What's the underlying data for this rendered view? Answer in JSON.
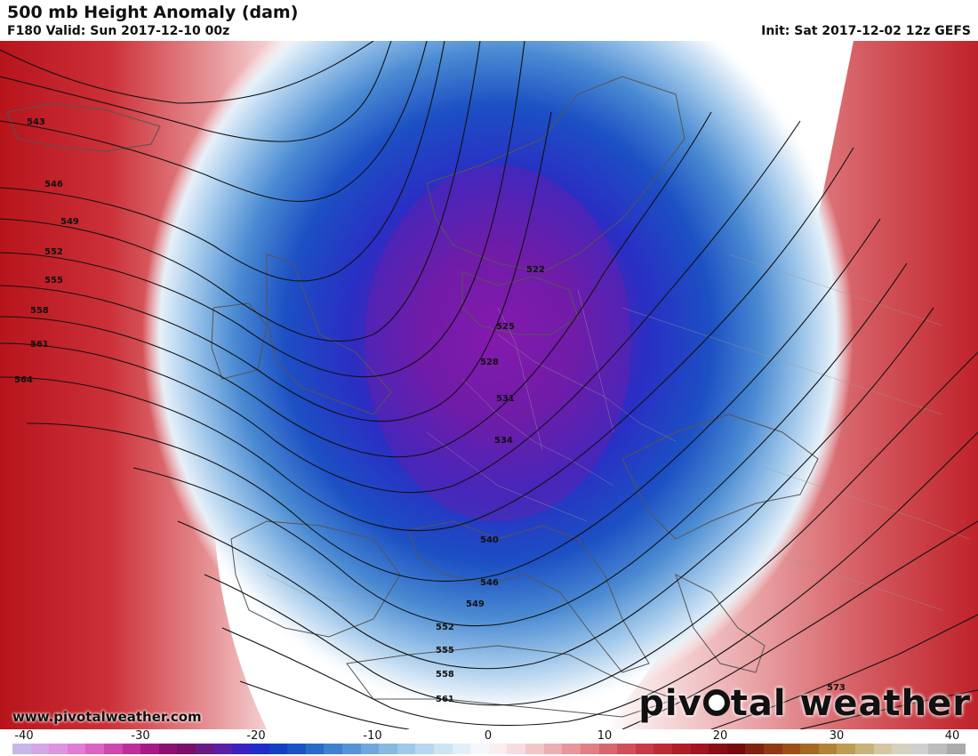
{
  "header": {
    "title": "500 mb Height Anomaly (dam)",
    "valid": "F180 Valid: Sun 2017-12-10 00z",
    "init": "Init: Sat 2017-12-02 12z GEFS"
  },
  "footer": {
    "website": "www.pivotalweather.com",
    "brand_left": "piv",
    "brand_right": "tal weather"
  },
  "colorbar": {
    "ticks": [
      "-40",
      "-30",
      "-20",
      "-10",
      "0",
      "10",
      "20",
      "30",
      "40"
    ],
    "range": [
      -40,
      40
    ],
    "colors": [
      "#c9b7e6",
      "#d4a6e8",
      "#de94e0",
      "#e27cd6",
      "#dc62c4",
      "#cf48b0",
      "#be2f9c",
      "#a81a85",
      "#8e0f72",
      "#7a0e6a",
      "#6a1a86",
      "#5a20a6",
      "#3c22c0",
      "#1f2ec8",
      "#1440c4",
      "#1a54c4",
      "#2a6ac8",
      "#3f80cf",
      "#5694d6",
      "#6ea7dd",
      "#86b9e4",
      "#9ec9ea",
      "#b6d7ef",
      "#cde4f4",
      "#e2eef8",
      "#f4f7fb",
      "#fbeef0",
      "#f7dcdf",
      "#f2c6c9",
      "#edaeb2",
      "#e7979b",
      "#e07f84",
      "#d8676d",
      "#cf5058",
      "#c73b44",
      "#bd2b33",
      "#b01f28",
      "#a0151e",
      "#8c0e14",
      "#780a0e",
      "#802410",
      "#8e3a12",
      "#9c5018",
      "#a86822",
      "#b48234",
      "#c09c52",
      "#cab378",
      "#d3c6a0",
      "#d6d0be",
      "#cfcfcf",
      "#bdbdbd",
      "#ababab"
    ]
  },
  "map": {
    "contour_labels": [
      "543",
      "546",
      "549",
      "552",
      "555",
      "558",
      "561",
      "564",
      "522",
      "525",
      "528",
      "531",
      "534",
      "540",
      "546",
      "549",
      "552",
      "555",
      "558",
      "561",
      "573"
    ],
    "anomaly_colors": {
      "strong_negative": "#7a1aa8",
      "negative": "#1f3fc4",
      "weak_negative": "#9ec9ea",
      "neutral": "#ffffff",
      "weak_positive": "#f2c6c9",
      "positive": "#d8676d",
      "strong_positive": "#b01f28"
    }
  }
}
